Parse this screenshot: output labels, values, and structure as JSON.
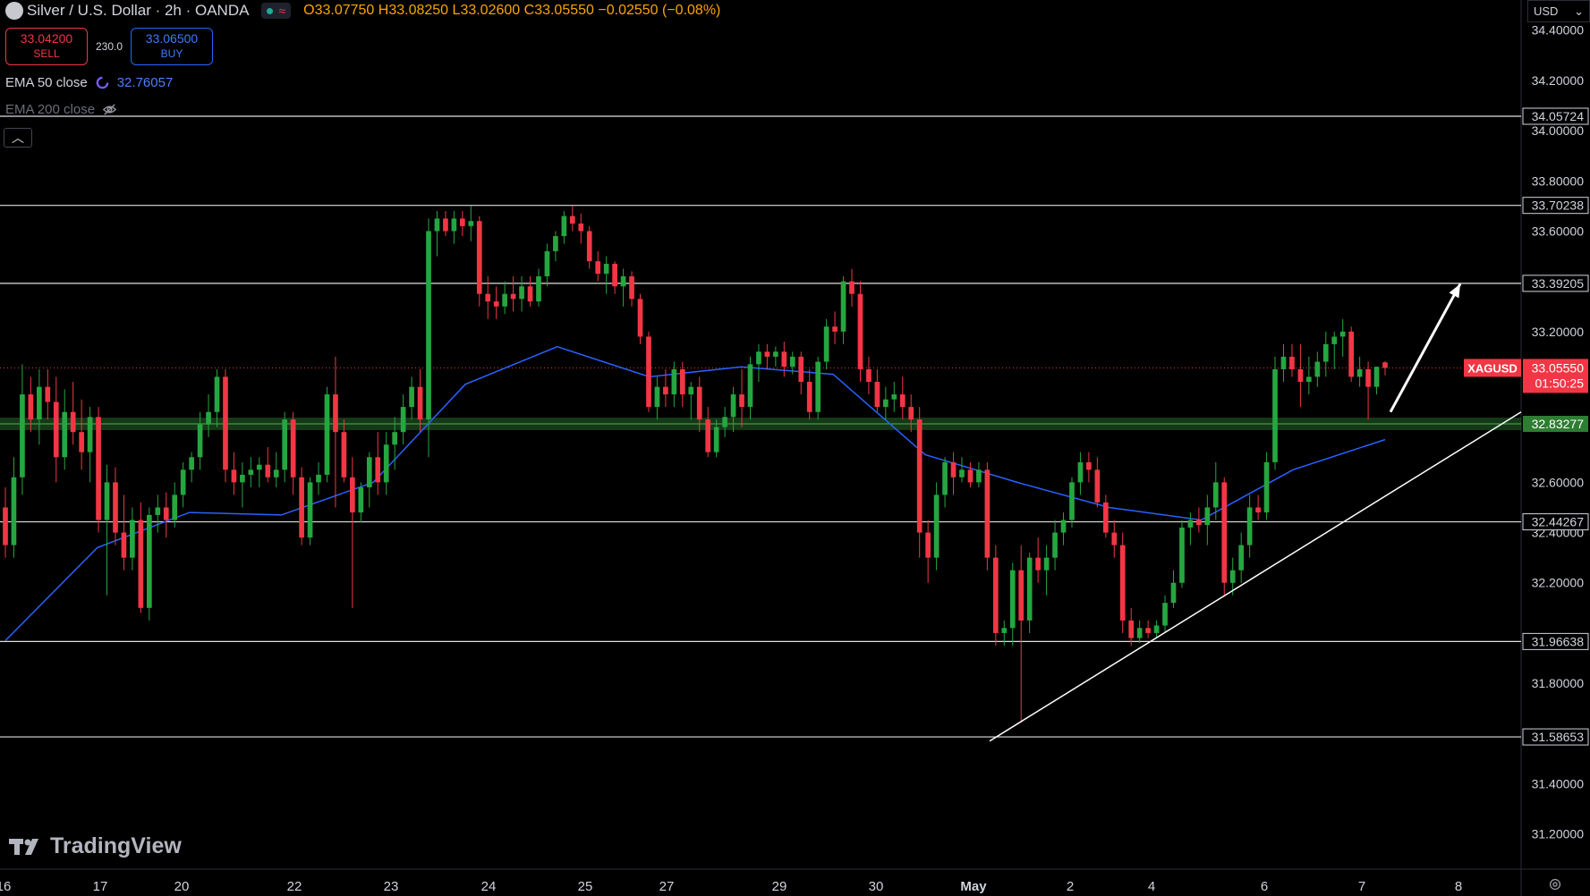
{
  "header": {
    "symbol_title": "Silver / U.S. Dollar · 2h · OANDA",
    "open_label": "O",
    "open": "33.07750",
    "high_label": "H",
    "high": "33.08250",
    "low_label": "L",
    "low": "33.02600",
    "close_label": "C",
    "close": "33.05550",
    "change": "−0.02550 (−0.08%)"
  },
  "trade": {
    "sell_price": "33.04200",
    "sell_label": "SELL",
    "spread": "230.0",
    "buy_price": "33.06500",
    "buy_label": "BUY"
  },
  "indicators": {
    "ema50_label": "EMA 50 close",
    "ema50_value": "32.76057",
    "ema200_label": "EMA 200 close"
  },
  "axis": {
    "currency": "USD"
  },
  "branding": {
    "logo_text": "TradingView"
  },
  "colors": {
    "up": "#26a640",
    "down": "#f23645",
    "ema": "#2962ff",
    "zone": "#2e7d32",
    "price_tag": "#f23645"
  },
  "chart_data": {
    "type": "candlestick",
    "symbol": "XAGUSD",
    "interval": "2h",
    "ylim": [
      31.06,
      34.52
    ],
    "y_ticks": [
      "34.40000",
      "34.20000",
      "34.00000",
      "33.80000",
      "33.60000",
      "33.20000",
      "32.60000",
      "32.40000",
      "32.20000",
      "31.80000",
      "31.40000",
      "31.20000"
    ],
    "x_ticks": [
      "16",
      "17",
      "20",
      "22",
      "23",
      "24",
      "25",
      "27",
      "29",
      "30",
      "May",
      "2",
      "4",
      "6",
      "7",
      "8"
    ],
    "horizontal_levels": [
      "34.05724",
      "33.70238",
      "33.39205",
      "32.44267",
      "31.96638",
      "31.58653"
    ],
    "support_zone": "32.83277",
    "last_price": "33.05550",
    "countdown": "01:50:25",
    "trendline": {
      "from": [
        "May 1",
        31.57
      ],
      "to": [
        "May 8",
        32.88
      ]
    },
    "ema50_sample": [
      31.97,
      32.34,
      32.48,
      32.47,
      32.6,
      32.99,
      33.14,
      33.02,
      33.06,
      33.03,
      32.71,
      32.6,
      32.5,
      32.45,
      32.65,
      32.77
    ],
    "candles": [
      {
        "x": "16",
        "o": 32.5,
        "h": 32.58,
        "l": 32.3,
        "c": 32.35
      },
      {
        "o": 32.35,
        "h": 32.7,
        "l": 32.3,
        "c": 32.62
      },
      {
        "o": 32.62,
        "h": 33.07,
        "l": 32.55,
        "c": 32.95
      },
      {
        "o": 32.95,
        "h": 33.02,
        "l": 32.8,
        "c": 32.85
      },
      {
        "o": 32.85,
        "h": 33.05,
        "l": 32.75,
        "c": 32.98
      },
      {
        "o": 32.98,
        "h": 33.05,
        "l": 32.85,
        "c": 32.92
      },
      {
        "o": 32.92,
        "h": 33.02,
        "l": 32.6,
        "c": 32.7
      },
      {
        "o": 32.7,
        "h": 32.97,
        "l": 32.65,
        "c": 32.88
      },
      {
        "o": 32.88,
        "h": 33.0,
        "l": 32.75,
        "c": 32.8
      },
      {
        "o": 32.8,
        "h": 32.93,
        "l": 32.65,
        "c": 32.72
      },
      {
        "o": 32.72,
        "h": 32.9,
        "l": 32.6,
        "c": 32.86
      },
      {
        "x": "17",
        "o": 32.86,
        "h": 32.9,
        "l": 32.4,
        "c": 32.45
      },
      {
        "o": 32.45,
        "h": 32.67,
        "l": 32.15,
        "c": 32.6
      },
      {
        "o": 32.6,
        "h": 32.66,
        "l": 32.35,
        "c": 32.4
      },
      {
        "o": 32.4,
        "h": 32.55,
        "l": 32.25,
        "c": 32.3
      },
      {
        "o": 32.3,
        "h": 32.5,
        "l": 32.25,
        "c": 32.45
      },
      {
        "o": 32.45,
        "h": 32.52,
        "l": 32.08,
        "c": 32.1
      },
      {
        "o": 32.1,
        "h": 32.5,
        "l": 32.05,
        "c": 32.47
      },
      {
        "o": 32.47,
        "h": 32.55,
        "l": 32.4,
        "c": 32.5
      },
      {
        "x": "20",
        "o": 32.5,
        "h": 32.56,
        "l": 32.38,
        "c": 32.45
      },
      {
        "o": 32.45,
        "h": 32.6,
        "l": 32.42,
        "c": 32.55
      },
      {
        "o": 32.55,
        "h": 32.68,
        "l": 32.5,
        "c": 32.65
      },
      {
        "o": 32.65,
        "h": 32.72,
        "l": 32.6,
        "c": 32.7
      },
      {
        "o": 32.7,
        "h": 32.88,
        "l": 32.65,
        "c": 32.83
      },
      {
        "o": 32.83,
        "h": 32.95,
        "l": 32.78,
        "c": 32.88
      },
      {
        "o": 32.88,
        "h": 33.05,
        "l": 32.82,
        "c": 33.02
      },
      {
        "o": 33.02,
        "h": 33.05,
        "l": 32.6,
        "c": 32.65
      },
      {
        "o": 32.65,
        "h": 32.72,
        "l": 32.55,
        "c": 32.6
      },
      {
        "o": 32.6,
        "h": 32.68,
        "l": 32.5,
        "c": 32.63
      },
      {
        "x": "22",
        "o": 32.63,
        "h": 32.7,
        "l": 32.58,
        "c": 32.65
      },
      {
        "o": 32.65,
        "h": 32.7,
        "l": 32.58,
        "c": 32.67
      },
      {
        "o": 32.67,
        "h": 32.74,
        "l": 32.6,
        "c": 32.62
      },
      {
        "o": 32.62,
        "h": 32.72,
        "l": 32.58,
        "c": 32.65
      },
      {
        "o": 32.65,
        "h": 32.88,
        "l": 32.6,
        "c": 32.85
      },
      {
        "o": 32.85,
        "h": 32.88,
        "l": 32.55,
        "c": 32.62
      },
      {
        "o": 32.62,
        "h": 32.66,
        "l": 32.35,
        "c": 32.38
      },
      {
        "o": 32.38,
        "h": 32.62,
        "l": 32.35,
        "c": 32.6
      },
      {
        "o": 32.6,
        "h": 32.68,
        "l": 32.55,
        "c": 32.63
      },
      {
        "x": "23",
        "o": 32.63,
        "h": 32.98,
        "l": 32.6,
        "c": 32.95
      },
      {
        "o": 32.95,
        "h": 33.1,
        "l": 32.5,
        "c": 32.8
      },
      {
        "o": 32.8,
        "h": 32.85,
        "l": 32.6,
        "c": 32.62
      },
      {
        "o": 32.62,
        "h": 32.7,
        "l": 32.1,
        "c": 32.48
      },
      {
        "o": 32.48,
        "h": 32.6,
        "l": 32.44,
        "c": 32.58
      },
      {
        "o": 32.58,
        "h": 32.72,
        "l": 32.5,
        "c": 32.7
      },
      {
        "o": 32.7,
        "h": 32.8,
        "l": 32.55,
        "c": 32.6
      },
      {
        "o": 32.6,
        "h": 32.8,
        "l": 32.55,
        "c": 32.75
      },
      {
        "o": 32.75,
        "h": 32.86,
        "l": 32.65,
        "c": 32.8
      },
      {
        "o": 32.8,
        "h": 32.95,
        "l": 32.75,
        "c": 32.9
      },
      {
        "o": 32.9,
        "h": 33.02,
        "l": 32.85,
        "c": 32.98
      },
      {
        "o": 32.98,
        "h": 33.05,
        "l": 32.8,
        "c": 32.85
      },
      {
        "o": 32.85,
        "h": 33.65,
        "l": 32.7,
        "c": 33.6
      },
      {
        "x": "24",
        "o": 33.6,
        "h": 33.68,
        "l": 33.5,
        "c": 33.65
      },
      {
        "o": 33.65,
        "h": 33.68,
        "l": 33.58,
        "c": 33.6
      },
      {
        "o": 33.6,
        "h": 33.68,
        "l": 33.55,
        "c": 33.65
      },
      {
        "o": 33.65,
        "h": 33.68,
        "l": 33.58,
        "c": 33.62
      },
      {
        "o": 33.62,
        "h": 33.7,
        "l": 33.56,
        "c": 33.64
      },
      {
        "o": 33.64,
        "h": 33.66,
        "l": 33.3,
        "c": 33.35
      },
      {
        "o": 33.35,
        "h": 33.42,
        "l": 33.25,
        "c": 33.32
      },
      {
        "o": 33.32,
        "h": 33.38,
        "l": 33.25,
        "c": 33.3
      },
      {
        "o": 33.3,
        "h": 33.4,
        "l": 33.27,
        "c": 33.35
      },
      {
        "o": 33.35,
        "h": 33.42,
        "l": 33.28,
        "c": 33.33
      },
      {
        "o": 33.33,
        "h": 33.42,
        "l": 33.28,
        "c": 33.38
      },
      {
        "o": 33.38,
        "h": 33.42,
        "l": 33.3,
        "c": 33.32
      },
      {
        "o": 33.32,
        "h": 33.45,
        "l": 33.3,
        "c": 33.42
      },
      {
        "o": 33.42,
        "h": 33.55,
        "l": 33.38,
        "c": 33.52
      },
      {
        "x": "25",
        "o": 33.52,
        "h": 33.6,
        "l": 33.48,
        "c": 33.58
      },
      {
        "o": 33.58,
        "h": 33.68,
        "l": 33.55,
        "c": 33.66
      },
      {
        "o": 33.66,
        "h": 33.7,
        "l": 33.6,
        "c": 33.63
      },
      {
        "o": 33.63,
        "h": 33.67,
        "l": 33.55,
        "c": 33.6
      },
      {
        "o": 33.6,
        "h": 33.62,
        "l": 33.45,
        "c": 33.48
      },
      {
        "o": 33.48,
        "h": 33.52,
        "l": 33.4,
        "c": 33.43
      },
      {
        "o": 33.43,
        "h": 33.5,
        "l": 33.35,
        "c": 33.47
      },
      {
        "o": 33.47,
        "h": 33.48,
        "l": 33.35,
        "c": 33.38
      },
      {
        "o": 33.38,
        "h": 33.45,
        "l": 33.3,
        "c": 33.42
      },
      {
        "o": 33.42,
        "h": 33.44,
        "l": 33.3,
        "c": 33.33
      },
      {
        "o": 33.33,
        "h": 33.35,
        "l": 33.15,
        "c": 33.18
      },
      {
        "x": "27",
        "o": 33.18,
        "h": 33.2,
        "l": 32.88,
        "c": 32.9
      },
      {
        "o": 32.9,
        "h": 33.02,
        "l": 32.85,
        "c": 32.98
      },
      {
        "o": 32.98,
        "h": 33.05,
        "l": 32.9,
        "c": 32.95
      },
      {
        "o": 32.95,
        "h": 33.08,
        "l": 32.9,
        "c": 33.05
      },
      {
        "o": 33.05,
        "h": 33.08,
        "l": 32.9,
        "c": 32.95
      },
      {
        "o": 32.95,
        "h": 33.0,
        "l": 32.85,
        "c": 32.98
      },
      {
        "o": 32.98,
        "h": 33.02,
        "l": 32.8,
        "c": 32.85
      },
      {
        "o": 32.85,
        "h": 32.9,
        "l": 32.7,
        "c": 32.72
      },
      {
        "o": 32.72,
        "h": 32.85,
        "l": 32.7,
        "c": 32.82
      },
      {
        "o": 32.82,
        "h": 32.9,
        "l": 32.78,
        "c": 32.86
      },
      {
        "o": 32.86,
        "h": 32.98,
        "l": 32.8,
        "c": 32.95
      },
      {
        "o": 32.95,
        "h": 33.05,
        "l": 32.82,
        "c": 32.9
      },
      {
        "o": 32.9,
        "h": 33.1,
        "l": 32.85,
        "c": 33.07
      },
      {
        "x": "29",
        "o": 33.07,
        "h": 33.15,
        "l": 33.0,
        "c": 33.12
      },
      {
        "o": 33.12,
        "h": 33.15,
        "l": 33.05,
        "c": 33.1
      },
      {
        "o": 33.1,
        "h": 33.14,
        "l": 33.06,
        "c": 33.12
      },
      {
        "o": 33.12,
        "h": 33.16,
        "l": 33.02,
        "c": 33.06
      },
      {
        "o": 33.06,
        "h": 33.12,
        "l": 33.03,
        "c": 33.1
      },
      {
        "o": 33.1,
        "h": 33.12,
        "l": 32.95,
        "c": 33.0
      },
      {
        "o": 33.0,
        "h": 33.05,
        "l": 32.85,
        "c": 32.88
      },
      {
        "o": 32.88,
        "h": 33.1,
        "l": 32.85,
        "c": 33.08
      },
      {
        "o": 33.08,
        "h": 33.25,
        "l": 33.05,
        "c": 33.22
      },
      {
        "o": 33.22,
        "h": 33.28,
        "l": 33.15,
        "c": 33.2
      },
      {
        "o": 33.2,
        "h": 33.42,
        "l": 33.15,
        "c": 33.4
      },
      {
        "o": 33.4,
        "h": 33.45,
        "l": 33.3,
        "c": 33.35
      },
      {
        "o": 33.35,
        "h": 33.4,
        "l": 33.0,
        "c": 33.05
      },
      {
        "x": "30",
        "o": 33.05,
        "h": 33.1,
        "l": 32.95,
        "c": 33.0
      },
      {
        "o": 33.0,
        "h": 33.05,
        "l": 32.88,
        "c": 32.9
      },
      {
        "o": 32.9,
        "h": 32.98,
        "l": 32.85,
        "c": 32.93
      },
      {
        "o": 32.93,
        "h": 33.0,
        "l": 32.88,
        "c": 32.95
      },
      {
        "o": 32.95,
        "h": 33.02,
        "l": 32.85,
        "c": 32.9
      },
      {
        "o": 32.9,
        "h": 32.95,
        "l": 32.8,
        "c": 32.85
      },
      {
        "o": 32.85,
        "h": 32.9,
        "l": 32.3,
        "c": 32.4
      },
      {
        "o": 32.4,
        "h": 32.45,
        "l": 32.2,
        "c": 32.3
      },
      {
        "o": 32.3,
        "h": 32.6,
        "l": 32.25,
        "c": 32.55
      },
      {
        "o": 32.55,
        "h": 32.7,
        "l": 32.5,
        "c": 32.68
      },
      {
        "o": 32.68,
        "h": 32.72,
        "l": 32.55,
        "c": 32.62
      },
      {
        "o": 32.62,
        "h": 32.7,
        "l": 32.6,
        "c": 32.65
      },
      {
        "o": 32.65,
        "h": 32.68,
        "l": 32.58,
        "c": 32.6
      },
      {
        "o": 32.6,
        "h": 32.68,
        "l": 32.58,
        "c": 32.65
      },
      {
        "x": "May",
        "o": 32.65,
        "h": 32.68,
        "l": 32.25,
        "c": 32.3
      },
      {
        "o": 32.3,
        "h": 32.35,
        "l": 31.95,
        "c": 32.0
      },
      {
        "o": 32.0,
        "h": 32.05,
        "l": 31.95,
        "c": 32.02
      },
      {
        "o": 32.02,
        "h": 32.28,
        "l": 31.95,
        "c": 32.25
      },
      {
        "o": 32.25,
        "h": 32.35,
        "l": 31.65,
        "c": 32.05
      },
      {
        "o": 32.05,
        "h": 32.32,
        "l": 32.0,
        "c": 32.3
      },
      {
        "o": 32.3,
        "h": 32.38,
        "l": 32.2,
        "c": 32.25
      },
      {
        "o": 32.25,
        "h": 32.35,
        "l": 32.15,
        "c": 32.3
      },
      {
        "o": 32.3,
        "h": 32.45,
        "l": 32.25,
        "c": 32.4
      },
      {
        "o": 32.4,
        "h": 32.48,
        "l": 32.35,
        "c": 32.45
      },
      {
        "o": 32.45,
        "h": 32.62,
        "l": 32.42,
        "c": 32.6
      },
      {
        "x": "2",
        "o": 32.6,
        "h": 32.72,
        "l": 32.55,
        "c": 32.68
      },
      {
        "o": 32.68,
        "h": 32.72,
        "l": 32.6,
        "c": 32.65
      },
      {
        "o": 32.65,
        "h": 32.7,
        "l": 32.5,
        "c": 32.52
      },
      {
        "o": 32.52,
        "h": 32.55,
        "l": 32.38,
        "c": 32.4
      },
      {
        "o": 32.4,
        "h": 32.45,
        "l": 32.3,
        "c": 32.35
      },
      {
        "o": 32.35,
        "h": 32.4,
        "l": 32.0,
        "c": 32.05
      },
      {
        "o": 32.05,
        "h": 32.1,
        "l": 31.95,
        "c": 31.98
      },
      {
        "o": 31.98,
        "h": 32.05,
        "l": 31.96,
        "c": 32.02
      },
      {
        "x": "4",
        "o": 32.02,
        "h": 32.05,
        "l": 31.98,
        "c": 32.0
      },
      {
        "o": 32.0,
        "h": 32.05,
        "l": 31.98,
        "c": 32.03
      },
      {
        "o": 32.03,
        "h": 32.15,
        "l": 32.0,
        "c": 32.12
      },
      {
        "o": 32.12,
        "h": 32.25,
        "l": 32.1,
        "c": 32.2
      },
      {
        "o": 32.2,
        "h": 32.45,
        "l": 32.18,
        "c": 32.42
      },
      {
        "o": 32.42,
        "h": 32.48,
        "l": 32.35,
        "c": 32.45
      },
      {
        "o": 32.45,
        "h": 32.5,
        "l": 32.4,
        "c": 32.43
      },
      {
        "o": 32.43,
        "h": 32.55,
        "l": 32.35,
        "c": 32.5
      },
      {
        "o": 32.5,
        "h": 32.68,
        "l": 32.45,
        "c": 32.6
      },
      {
        "o": 32.6,
        "h": 32.62,
        "l": 32.15,
        "c": 32.2
      },
      {
        "o": 32.2,
        "h": 32.3,
        "l": 32.15,
        "c": 32.25
      },
      {
        "o": 32.25,
        "h": 32.4,
        "l": 32.2,
        "c": 32.35
      },
      {
        "x": "6",
        "o": 32.35,
        "h": 32.55,
        "l": 32.3,
        "c": 32.5
      },
      {
        "o": 32.5,
        "h": 32.55,
        "l": 32.45,
        "c": 32.48
      },
      {
        "o": 32.48,
        "h": 32.72,
        "l": 32.45,
        "c": 32.68
      },
      {
        "o": 32.68,
        "h": 33.1,
        "l": 32.65,
        "c": 33.05
      },
      {
        "o": 33.05,
        "h": 33.15,
        "l": 33.0,
        "c": 33.1
      },
      {
        "o": 33.1,
        "h": 33.15,
        "l": 33.02,
        "c": 33.05
      },
      {
        "o": 33.05,
        "h": 33.15,
        "l": 32.9,
        "c": 33.0
      },
      {
        "o": 33.0,
        "h": 33.1,
        "l": 32.95,
        "c": 33.02
      },
      {
        "o": 33.02,
        "h": 33.12,
        "l": 32.98,
        "c": 33.08
      },
      {
        "o": 33.08,
        "h": 33.2,
        "l": 33.02,
        "c": 33.15
      },
      {
        "o": 33.15,
        "h": 33.2,
        "l": 33.05,
        "c": 33.18
      },
      {
        "x": "7",
        "o": 33.18,
        "h": 33.25,
        "l": 33.1,
        "c": 33.2
      },
      {
        "o": 33.2,
        "h": 33.22,
        "l": 33.0,
        "c": 33.02
      },
      {
        "o": 33.02,
        "h": 33.1,
        "l": 32.98,
        "c": 33.05
      },
      {
        "o": 33.05,
        "h": 33.08,
        "l": 32.85,
        "c": 32.98
      },
      {
        "o": 32.98,
        "h": 33.06,
        "l": 32.95,
        "c": 33.06
      },
      {
        "o": 33.0775,
        "h": 33.0825,
        "l": 33.026,
        "c": 33.0555
      }
    ]
  }
}
